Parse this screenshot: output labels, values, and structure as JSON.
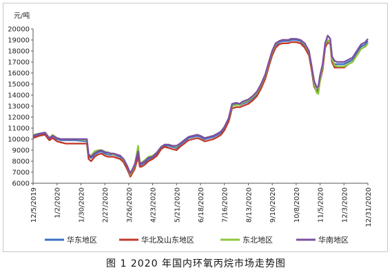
{
  "caption": "图 1  2020 年国内环氧丙烷市场走势图",
  "colors": {
    "series": [
      "#3a6fc4",
      "#c0392b",
      "#8dc63f",
      "#7b4fa3"
    ],
    "axis": "#555555"
  },
  "chart_data": {
    "type": "line",
    "title": "",
    "ylabel": "元/吨",
    "xlabel": "",
    "ylim": [
      6000,
      20000
    ],
    "yticks": [
      6000,
      7000,
      8000,
      9000,
      10000,
      11000,
      12000,
      13000,
      14000,
      15000,
      16000,
      17000,
      18000,
      19000,
      20000
    ],
    "ytick_labels": [
      "6000",
      "7000",
      "8000",
      "9000",
      "10000",
      "11000",
      "12000",
      "13000",
      "14000",
      "15000",
      "16000",
      "17000",
      "18000",
      "19000",
      "20000"
    ],
    "x_range": [
      "2019-12-05",
      "2020-12-31"
    ],
    "xticks": [
      "2019-12-05",
      "2020-01-02",
      "2020-01-30",
      "2020-02-27",
      "2020-03-26",
      "2020-04-23",
      "2020-05-21",
      "2020-06-18",
      "2020-07-16",
      "2020-08-13",
      "2020-09-10",
      "2020-10-08",
      "2020-11-05",
      "2020-12-03",
      "2020-12-31"
    ],
    "xtick_labels": [
      "12/5/2019",
      "1/2/2020",
      "1/30/2020",
      "2/27/2020",
      "3/26/2020",
      "4/23/2020",
      "5/21/2020",
      "6/18/2020",
      "7/16/2020",
      "8/13/2020",
      "9/10/2020",
      "10/8/2020",
      "11/5/2020",
      "12/3/2020",
      "12/31/2020"
    ],
    "grid": false,
    "legend_position": "bottom",
    "series": [
      {
        "name": "华东地区",
        "x": [
          "2019-12-05",
          "2019-12-12",
          "2019-12-19",
          "2019-12-24",
          "2019-12-28",
          "2020-01-02",
          "2020-01-07",
          "2020-01-12",
          "2020-01-23",
          "2020-02-06",
          "2020-02-08",
          "2020-02-11",
          "2020-02-15",
          "2020-02-19",
          "2020-02-23",
          "2020-02-27",
          "2020-03-02",
          "2020-03-05",
          "2020-03-08",
          "2020-03-12",
          "2020-03-16",
          "2020-03-20",
          "2020-03-24",
          "2020-03-28",
          "2020-04-02",
          "2020-04-06",
          "2020-04-08",
          "2020-04-10",
          "2020-04-14",
          "2020-04-18",
          "2020-04-23",
          "2020-04-28",
          "2020-05-03",
          "2020-05-07",
          "2020-05-12",
          "2020-05-16",
          "2020-05-21",
          "2020-05-25",
          "2020-05-30",
          "2020-06-04",
          "2020-06-09",
          "2020-06-14",
          "2020-06-18",
          "2020-06-23",
          "2020-06-28",
          "2020-07-03",
          "2020-07-08",
          "2020-07-12",
          "2020-07-16",
          "2020-07-21",
          "2020-07-25",
          "2020-07-30",
          "2020-08-03",
          "2020-08-06",
          "2020-08-13",
          "2020-08-18",
          "2020-08-23",
          "2020-08-28",
          "2020-09-02",
          "2020-09-06",
          "2020-09-10",
          "2020-09-14",
          "2020-09-18",
          "2020-09-22",
          "2020-09-26",
          "2020-09-29",
          "2020-10-02",
          "2020-10-05",
          "2020-10-08",
          "2020-10-13",
          "2020-10-18",
          "2020-10-23",
          "2020-10-26",
          "2020-10-29",
          "2020-11-01",
          "2020-11-03",
          "2020-11-05",
          "2020-11-08",
          "2020-11-11",
          "2020-11-14",
          "2020-11-17",
          "2020-11-19",
          "2020-11-22",
          "2020-11-25",
          "2020-11-28",
          "2020-12-03",
          "2020-12-08",
          "2020-12-13",
          "2020-12-18",
          "2020-12-23",
          "2020-12-28",
          "2020-12-31"
        ],
        "y": [
          10200,
          10400,
          10500,
          10000,
          10300,
          10000,
          9900,
          9900,
          9900,
          9800,
          8400,
          8300,
          8600,
          8800,
          8900,
          8700,
          8600,
          8600,
          8600,
          8500,
          8400,
          8000,
          7500,
          6700,
          7500,
          8800,
          7600,
          7700,
          7900,
          8200,
          8300,
          8600,
          9200,
          9400,
          9400,
          9300,
          9200,
          9500,
          9800,
          10100,
          10200,
          10300,
          10200,
          10000,
          10100,
          10200,
          10400,
          10600,
          11000,
          11800,
          13000,
          13200,
          13100,
          13200,
          13400,
          13700,
          14100,
          14800,
          15700,
          16800,
          17800,
          18500,
          18800,
          18900,
          18900,
          18900,
          19000,
          19000,
          19000,
          18900,
          18500,
          17800,
          16500,
          15000,
          14400,
          14600,
          15500,
          16500,
          18500,
          19000,
          18800,
          17200,
          16800,
          16800,
          16800,
          16800,
          17000,
          17200,
          17800,
          18400,
          18600,
          18900
        ]
      },
      {
        "name": "华北及山东地区",
        "x": [
          "2019-12-05",
          "2019-12-12",
          "2019-12-19",
          "2019-12-24",
          "2019-12-28",
          "2020-01-02",
          "2020-01-07",
          "2020-01-12",
          "2020-01-23",
          "2020-02-06",
          "2020-02-08",
          "2020-02-11",
          "2020-02-15",
          "2020-02-19",
          "2020-02-23",
          "2020-02-27",
          "2020-03-02",
          "2020-03-05",
          "2020-03-08",
          "2020-03-12",
          "2020-03-16",
          "2020-03-20",
          "2020-03-24",
          "2020-03-28",
          "2020-04-02",
          "2020-04-06",
          "2020-04-08",
          "2020-04-10",
          "2020-04-14",
          "2020-04-18",
          "2020-04-23",
          "2020-04-28",
          "2020-05-03",
          "2020-05-07",
          "2020-05-12",
          "2020-05-16",
          "2020-05-21",
          "2020-05-25",
          "2020-05-30",
          "2020-06-04",
          "2020-06-09",
          "2020-06-14",
          "2020-06-18",
          "2020-06-23",
          "2020-06-28",
          "2020-07-03",
          "2020-07-08",
          "2020-07-12",
          "2020-07-16",
          "2020-07-21",
          "2020-07-25",
          "2020-07-30",
          "2020-08-03",
          "2020-08-06",
          "2020-08-13",
          "2020-08-18",
          "2020-08-23",
          "2020-08-28",
          "2020-09-02",
          "2020-09-06",
          "2020-09-10",
          "2020-09-14",
          "2020-09-18",
          "2020-09-22",
          "2020-09-26",
          "2020-09-29",
          "2020-10-02",
          "2020-10-05",
          "2020-10-08",
          "2020-10-13",
          "2020-10-18",
          "2020-10-23",
          "2020-10-26",
          "2020-10-29",
          "2020-11-01",
          "2020-11-03",
          "2020-11-05",
          "2020-11-08",
          "2020-11-11",
          "2020-11-14",
          "2020-11-17",
          "2020-11-19",
          "2020-11-22",
          "2020-11-25",
          "2020-11-28",
          "2020-12-03",
          "2020-12-08",
          "2020-12-13",
          "2020-12-18",
          "2020-12-23",
          "2020-12-28",
          "2020-12-31"
        ],
        "y": [
          10100,
          10300,
          10400,
          9900,
          10100,
          9800,
          9700,
          9600,
          9600,
          9600,
          8200,
          8000,
          8400,
          8600,
          8700,
          8500,
          8400,
          8400,
          8400,
          8300,
          8200,
          7900,
          7300,
          6600,
          7300,
          8400,
          7500,
          7500,
          7700,
          8000,
          8200,
          8500,
          9100,
          9300,
          9200,
          9100,
          9000,
          9300,
          9600,
          9900,
          10000,
          10100,
          10000,
          9800,
          9900,
          10000,
          10200,
          10400,
          10800,
          11600,
          12800,
          12900,
          12900,
          13000,
          13200,
          13500,
          13900,
          14600,
          15500,
          16600,
          17600,
          18300,
          18600,
          18700,
          18700,
          18700,
          18800,
          18800,
          18800,
          18700,
          18300,
          17600,
          16300,
          14800,
          14300,
          14400,
          15300,
          16300,
          18300,
          18800,
          18600,
          17000,
          16500,
          16500,
          16500,
          16500,
          16800,
          17000,
          17600,
          18200,
          18400,
          18700
        ]
      },
      {
        "name": "东北地区",
        "x": [
          "2019-12-05",
          "2019-12-12",
          "2019-12-19",
          "2019-12-24",
          "2019-12-28",
          "2020-01-02",
          "2020-01-07",
          "2020-01-12",
          "2020-01-23",
          "2020-02-06",
          "2020-02-08",
          "2020-02-11",
          "2020-02-15",
          "2020-02-19",
          "2020-02-23",
          "2020-02-27",
          "2020-03-02",
          "2020-03-05",
          "2020-03-08",
          "2020-03-12",
          "2020-03-16",
          "2020-03-20",
          "2020-03-24",
          "2020-03-28",
          "2020-04-02",
          "2020-04-06",
          "2020-04-08",
          "2020-04-10",
          "2020-04-14",
          "2020-04-18",
          "2020-04-23",
          "2020-04-28",
          "2020-05-03",
          "2020-05-07",
          "2020-05-12",
          "2020-05-16",
          "2020-05-21",
          "2020-05-25",
          "2020-05-30",
          "2020-06-04",
          "2020-06-09",
          "2020-06-14",
          "2020-06-18",
          "2020-06-23",
          "2020-06-28",
          "2020-07-03",
          "2020-07-08",
          "2020-07-12",
          "2020-07-16",
          "2020-07-21",
          "2020-07-25",
          "2020-07-30",
          "2020-08-03",
          "2020-08-06",
          "2020-08-13",
          "2020-08-18",
          "2020-08-23",
          "2020-08-28",
          "2020-09-02",
          "2020-09-06",
          "2020-09-10",
          "2020-09-14",
          "2020-09-18",
          "2020-09-22",
          "2020-09-26",
          "2020-09-29",
          "2020-10-02",
          "2020-10-05",
          "2020-10-08",
          "2020-10-13",
          "2020-10-18",
          "2020-10-23",
          "2020-10-26",
          "2020-10-29",
          "2020-11-01",
          "2020-11-03",
          "2020-11-05",
          "2020-11-08",
          "2020-11-11",
          "2020-11-14",
          "2020-11-17",
          "2020-11-19",
          "2020-11-22",
          "2020-11-25",
          "2020-11-28",
          "2020-12-03",
          "2020-12-08",
          "2020-12-13",
          "2020-12-18",
          "2020-12-23",
          "2020-12-28",
          "2020-12-31"
        ],
        "y": [
          10400,
          10500,
          10600,
          10100,
          10400,
          10100,
          10000,
          10000,
          10000,
          9900,
          8600,
          8500,
          8900,
          9000,
          9000,
          8900,
          8700,
          8700,
          8600,
          8600,
          8500,
          8100,
          7600,
          6800,
          7600,
          9400,
          7800,
          7900,
          8100,
          8400,
          8500,
          8800,
          9300,
          9500,
          9500,
          9400,
          9300,
          9600,
          9900,
          10200,
          10300,
          10400,
          10300,
          10100,
          10200,
          10300,
          10500,
          10700,
          11100,
          11900,
          13000,
          13100,
          13100,
          13300,
          13500,
          13800,
          14200,
          14900,
          15800,
          16900,
          17900,
          18600,
          18900,
          19000,
          19000,
          19000,
          19100,
          19100,
          19100,
          19000,
          18600,
          17900,
          16600,
          15100,
          14200,
          14100,
          15400,
          16600,
          18600,
          19000,
          18700,
          17300,
          16700,
          16600,
          16600,
          16600,
          16800,
          17000,
          17600,
          18200,
          18400,
          18700
        ]
      },
      {
        "name": "华南地区",
        "x": [
          "2019-12-05",
          "2019-12-12",
          "2019-12-19",
          "2019-12-24",
          "2019-12-28",
          "2020-01-02",
          "2020-01-07",
          "2020-01-12",
          "2020-01-23",
          "2020-02-06",
          "2020-02-08",
          "2020-02-11",
          "2020-02-15",
          "2020-02-19",
          "2020-02-23",
          "2020-02-27",
          "2020-03-02",
          "2020-03-05",
          "2020-03-08",
          "2020-03-12",
          "2020-03-16",
          "2020-03-20",
          "2020-03-24",
          "2020-03-28",
          "2020-04-02",
          "2020-04-06",
          "2020-04-08",
          "2020-04-10",
          "2020-04-14",
          "2020-04-18",
          "2020-04-23",
          "2020-04-28",
          "2020-05-03",
          "2020-05-07",
          "2020-05-12",
          "2020-05-16",
          "2020-05-21",
          "2020-05-25",
          "2020-05-30",
          "2020-06-04",
          "2020-06-09",
          "2020-06-14",
          "2020-06-18",
          "2020-06-23",
          "2020-06-28",
          "2020-07-03",
          "2020-07-08",
          "2020-07-12",
          "2020-07-16",
          "2020-07-21",
          "2020-07-25",
          "2020-07-30",
          "2020-08-03",
          "2020-08-06",
          "2020-08-13",
          "2020-08-18",
          "2020-08-23",
          "2020-08-28",
          "2020-09-02",
          "2020-09-06",
          "2020-09-10",
          "2020-09-14",
          "2020-09-18",
          "2020-09-22",
          "2020-09-26",
          "2020-09-29",
          "2020-10-02",
          "2020-10-05",
          "2020-10-08",
          "2020-10-13",
          "2020-10-18",
          "2020-10-23",
          "2020-10-26",
          "2020-10-29",
          "2020-11-01",
          "2020-11-03",
          "2020-11-05",
          "2020-11-08",
          "2020-11-11",
          "2020-11-14",
          "2020-11-17",
          "2020-11-19",
          "2020-11-22",
          "2020-11-25",
          "2020-11-28",
          "2020-12-03",
          "2020-12-08",
          "2020-12-13",
          "2020-12-18",
          "2020-12-23",
          "2020-12-28",
          "2020-12-31"
        ],
        "y": [
          10300,
          10500,
          10600,
          10100,
          10300,
          10100,
          10000,
          10000,
          10000,
          10000,
          8600,
          8400,
          8700,
          8900,
          9000,
          8800,
          8800,
          8700,
          8700,
          8600,
          8500,
          8200,
          7600,
          6900,
          7700,
          8900,
          7800,
          7800,
          8000,
          8300,
          8400,
          8800,
          9300,
          9500,
          9500,
          9400,
          9400,
          9600,
          9900,
          10200,
          10300,
          10400,
          10300,
          10100,
          10200,
          10300,
          10500,
          10700,
          11100,
          11900,
          13200,
          13300,
          13200,
          13400,
          13600,
          13900,
          14300,
          15000,
          15900,
          17000,
          18000,
          18700,
          18900,
          19000,
          19000,
          19000,
          19100,
          19100,
          19100,
          19000,
          18700,
          18000,
          16700,
          15300,
          14700,
          14800,
          15800,
          16800,
          18700,
          19400,
          19100,
          17500,
          17100,
          17000,
          17000,
          17000,
          17200,
          17400,
          18000,
          18600,
          18800,
          19100
        ]
      }
    ]
  }
}
